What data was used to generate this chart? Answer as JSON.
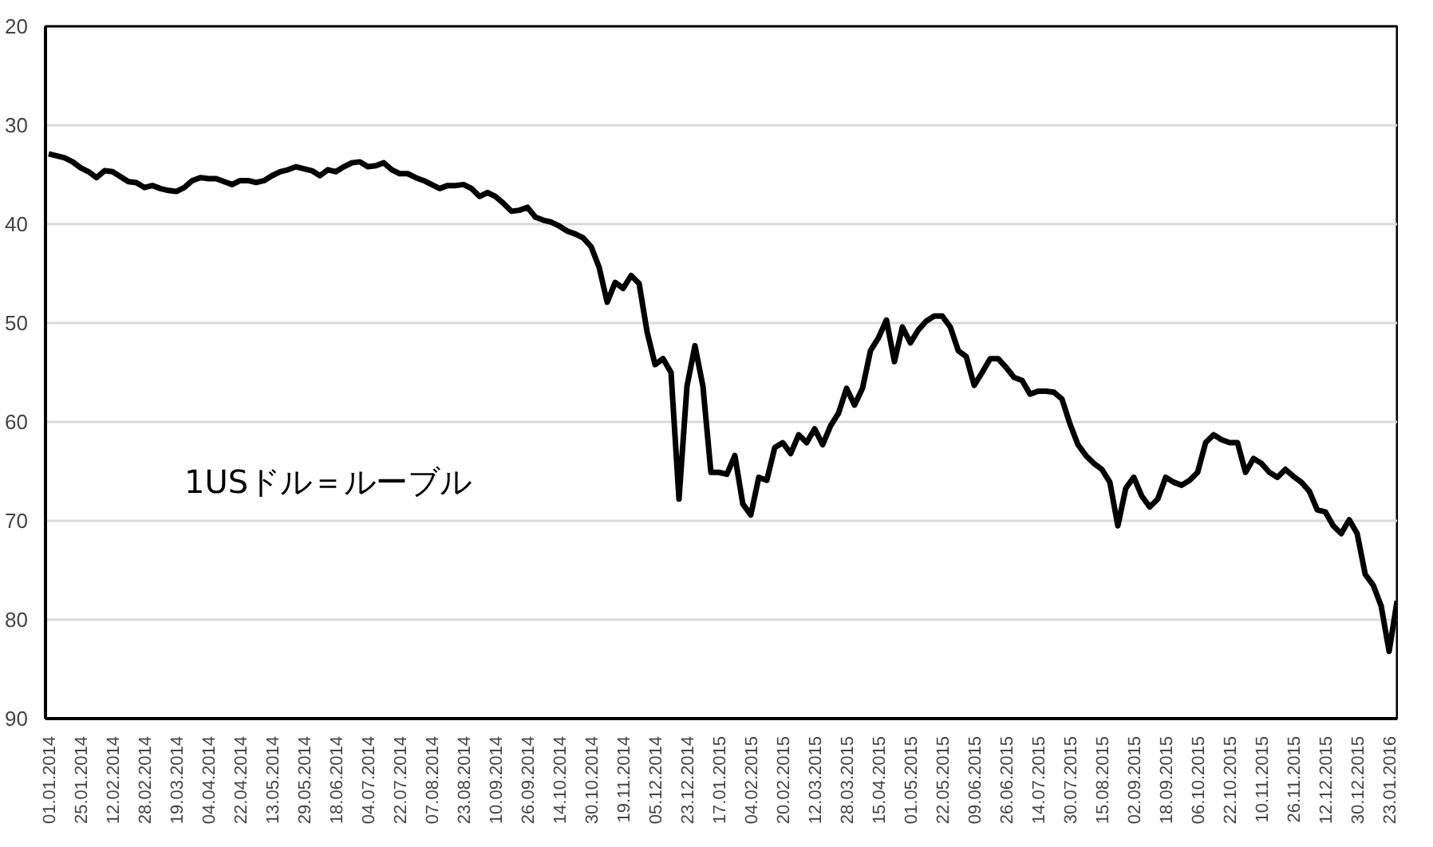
{
  "chart_data": {
    "type": "line",
    "categories": [
      "01.01.2014",
      null,
      null,
      null,
      "25.01.2014",
      null,
      null,
      null,
      "12.02.2014",
      null,
      null,
      null,
      "28.02.2014",
      null,
      null,
      null,
      "19.03.2014",
      null,
      null,
      null,
      "04.04.2014",
      null,
      null,
      null,
      "22.04.2014",
      null,
      null,
      null,
      "13.05.2014",
      null,
      null,
      null,
      "29.05.2014",
      null,
      null,
      null,
      "18.06.2014",
      null,
      null,
      null,
      "04.07.2014",
      null,
      null,
      null,
      "22.07.2014",
      null,
      null,
      null,
      "07.08.2014",
      null,
      null,
      null,
      "23.08.2014",
      null,
      null,
      null,
      "10.09.2014",
      null,
      null,
      null,
      "26.09.2014",
      null,
      null,
      null,
      "14.10.2014",
      null,
      null,
      null,
      "30.10.2014",
      null,
      null,
      null,
      "19.11.2014",
      null,
      null,
      null,
      "05.12.2014",
      null,
      null,
      null,
      "23.12.2014",
      null,
      null,
      null,
      "17.01.2015",
      null,
      null,
      null,
      "04.02.2015",
      null,
      null,
      null,
      "20.02.2015",
      null,
      null,
      null,
      "12.03.2015",
      null,
      null,
      null,
      "28.03.2015",
      null,
      null,
      null,
      "15.04.2015",
      null,
      null,
      null,
      "01.05.2015",
      null,
      null,
      null,
      "22.05.2015",
      null,
      null,
      null,
      "09.06.2015",
      null,
      null,
      null,
      "26.06.2015",
      null,
      null,
      null,
      "14.07.2015",
      null,
      null,
      null,
      "30.07.2015",
      null,
      null,
      null,
      "15.08.2015",
      null,
      null,
      null,
      "02.09.2015",
      null,
      null,
      null,
      "18.09.2015",
      null,
      null,
      null,
      "06.10.2015",
      null,
      null,
      null,
      "22.10.2015",
      null,
      null,
      null,
      "10.11.2015",
      null,
      null,
      null,
      "26.11.2015",
      null,
      null,
      null,
      "12.12.2015",
      null,
      null,
      null,
      "30.12.2015",
      null,
      null,
      null,
      "23.01.2016",
      null
    ],
    "series": [
      {
        "color": "#000000",
        "values": [
          32.9,
          33.1,
          33.3,
          33.7,
          34.3,
          34.7,
          35.3,
          34.6,
          34.7,
          35.2,
          35.7,
          35.8,
          36.3,
          36.1,
          36.4,
          36.6,
          36.7,
          36.3,
          35.6,
          35.3,
          35.4,
          35.4,
          35.7,
          36.0,
          35.6,
          35.6,
          35.8,
          35.6,
          35.1,
          34.7,
          34.5,
          34.2,
          34.4,
          34.6,
          35.1,
          34.5,
          34.7,
          34.2,
          33.8,
          33.7,
          34.2,
          34.1,
          33.8,
          34.5,
          34.9,
          34.9,
          35.3,
          35.6,
          36.0,
          36.4,
          36.1,
          36.1,
          36.0,
          36.4,
          37.2,
          36.8,
          37.2,
          37.9,
          38.7,
          38.6,
          38.3,
          39.3,
          39.6,
          39.8,
          40.2,
          40.7,
          41.0,
          41.4,
          42.3,
          44.4,
          47.9,
          45.9,
          46.5,
          45.2,
          46.0,
          50.9,
          54.2,
          53.6,
          55.0,
          67.8,
          56.4,
          52.3,
          56.4,
          65.1,
          65.1,
          65.3,
          63.4,
          68.3,
          69.4,
          65.6,
          65.9,
          62.6,
          62.1,
          63.2,
          61.3,
          62.1,
          60.7,
          62.3,
          60.4,
          59.1,
          56.6,
          58.3,
          56.6,
          52.8,
          51.5,
          49.7,
          53.9,
          50.4,
          52.0,
          50.7,
          49.8,
          49.3,
          49.3,
          50.4,
          52.8,
          53.4,
          56.3,
          55.0,
          53.6,
          53.6,
          54.5,
          55.5,
          55.8,
          57.2,
          56.9,
          56.9,
          57.0,
          57.7,
          60.2,
          62.3,
          63.4,
          64.2,
          64.8,
          66.1,
          70.5,
          66.7,
          65.6,
          67.5,
          68.6,
          67.8,
          65.6,
          66.1,
          66.4,
          65.9,
          65.1,
          62.1,
          61.3,
          61.8,
          62.1,
          62.1,
          65.1,
          63.7,
          64.2,
          65.1,
          65.6,
          64.8,
          65.5,
          66.1,
          67.0,
          68.9,
          69.1,
          70.5,
          71.3,
          69.9,
          71.3,
          75.4,
          76.5,
          78.6,
          83.2,
          78.1
        ]
      }
    ],
    "ylim": [
      90,
      20
    ],
    "yticks": [
      20,
      30,
      40,
      50,
      60,
      70,
      80,
      90
    ],
    "grid": "y",
    "line_style": "solid",
    "annotations": [
      "1USドル＝ルーブル"
    ]
  }
}
